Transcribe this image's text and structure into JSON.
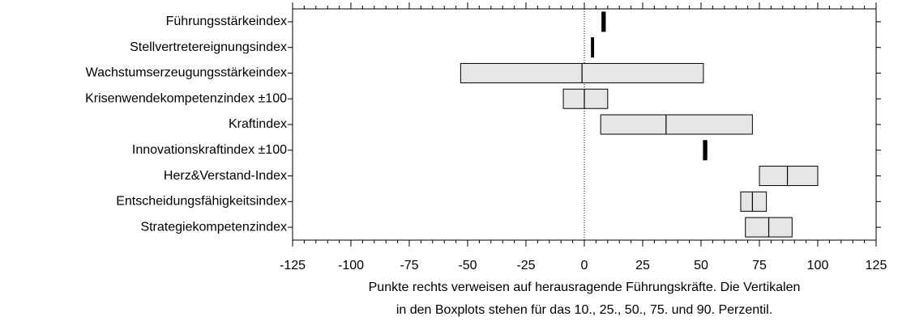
{
  "chart_data": {
    "type": "boxplot",
    "categories": [
      "Führungsstärkeindex",
      "Stellvertretereignungsindex",
      "Wachstumserzeugungsstärkeindex",
      "Krisenwendekompetenzindex ±100",
      "Kraftindex",
      "Innovationskraftindex ±100",
      "Herz&Verstand-Index",
      "Entscheidungsfähigkeitsindex",
      "Strategiekompetenzindex"
    ],
    "low": [
      7.5,
      3,
      -53,
      -9,
      7,
      51,
      75,
      67,
      69
    ],
    "median": [
      null,
      null,
      -1,
      0,
      35,
      null,
      87,
      72,
      79
    ],
    "high": [
      9,
      4,
      51,
      10,
      72,
      52.5,
      100,
      78,
      89
    ],
    "color": "#e6e6e6",
    "xlim": [
      -125,
      125
    ],
    "xticks": [
      -125,
      -100,
      -75,
      -50,
      -25,
      0,
      25,
      50,
      75,
      100,
      125
    ],
    "zero_line": true,
    "xlabel": [
      "Punkte rechts verweisen auf herausragende Führungskräfte. Die Vertikalen",
      "in den Boxplots stehen für das 10., 25., 50., 75. und 90. Perzentil."
    ]
  }
}
